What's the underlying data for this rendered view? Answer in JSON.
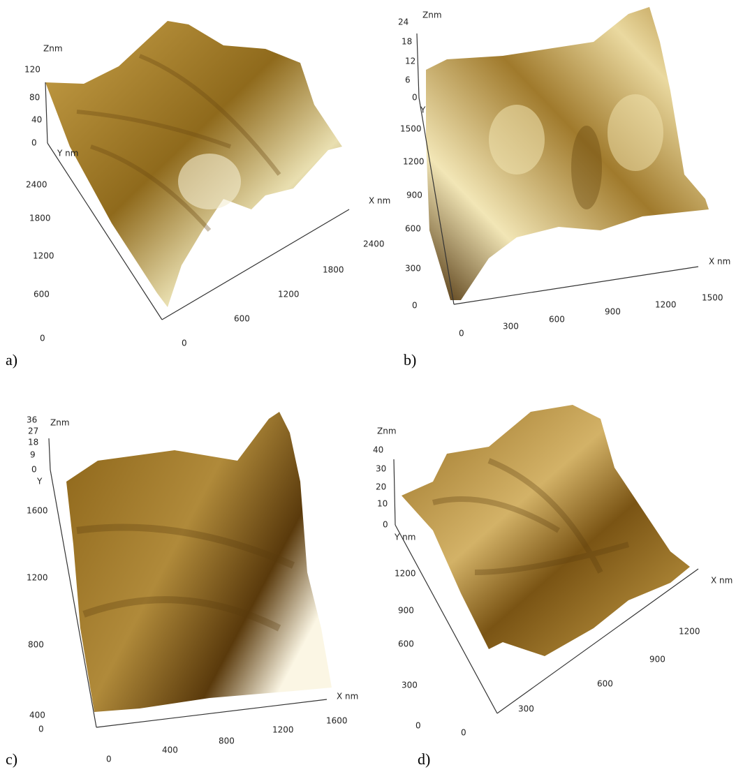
{
  "panels": [
    {
      "label": "a)",
      "axis_titles": {
        "z": "Znm",
        "y": "Y nm",
        "x": "X nm"
      },
      "z_ticks": [
        "120",
        "80",
        "40",
        "0"
      ],
      "y_ticks": [
        "2400",
        "1800",
        "1200",
        "600",
        "0"
      ],
      "x_ticks": [
        "0",
        "600",
        "1200",
        "1800",
        "2400"
      ]
    },
    {
      "label": "b)",
      "axis_titles": {
        "z": "Znm",
        "y": "Y",
        "x": "X nm"
      },
      "z_ticks": [
        "24",
        "18",
        "12",
        "6",
        "0"
      ],
      "y_ticks": [
        "1500",
        "1200",
        "900",
        "600",
        "300",
        "0"
      ],
      "x_ticks": [
        "0",
        "300",
        "600",
        "900",
        "1200",
        "1500"
      ]
    },
    {
      "label": "c)",
      "axis_titles": {
        "z": "Znm",
        "y": "Y",
        "x": "X nm"
      },
      "z_ticks": [
        "36",
        "27",
        "18",
        "9",
        "0"
      ],
      "y_ticks": [
        "1600",
        "1200",
        "800",
        "400",
        "0"
      ],
      "x_ticks": [
        "0",
        "400",
        "800",
        "1200",
        "1600"
      ]
    },
    {
      "label": "d)",
      "axis_titles": {
        "z": "Znm",
        "y": "Y nm",
        "x": "X nm"
      },
      "z_ticks": [
        "40",
        "30",
        "20",
        "10",
        "0"
      ],
      "y_ticks": [
        "1200",
        "900",
        "600",
        "300",
        "0"
      ],
      "x_ticks": [
        "0",
        "300",
        "600",
        "900",
        "1200"
      ]
    }
  ]
}
